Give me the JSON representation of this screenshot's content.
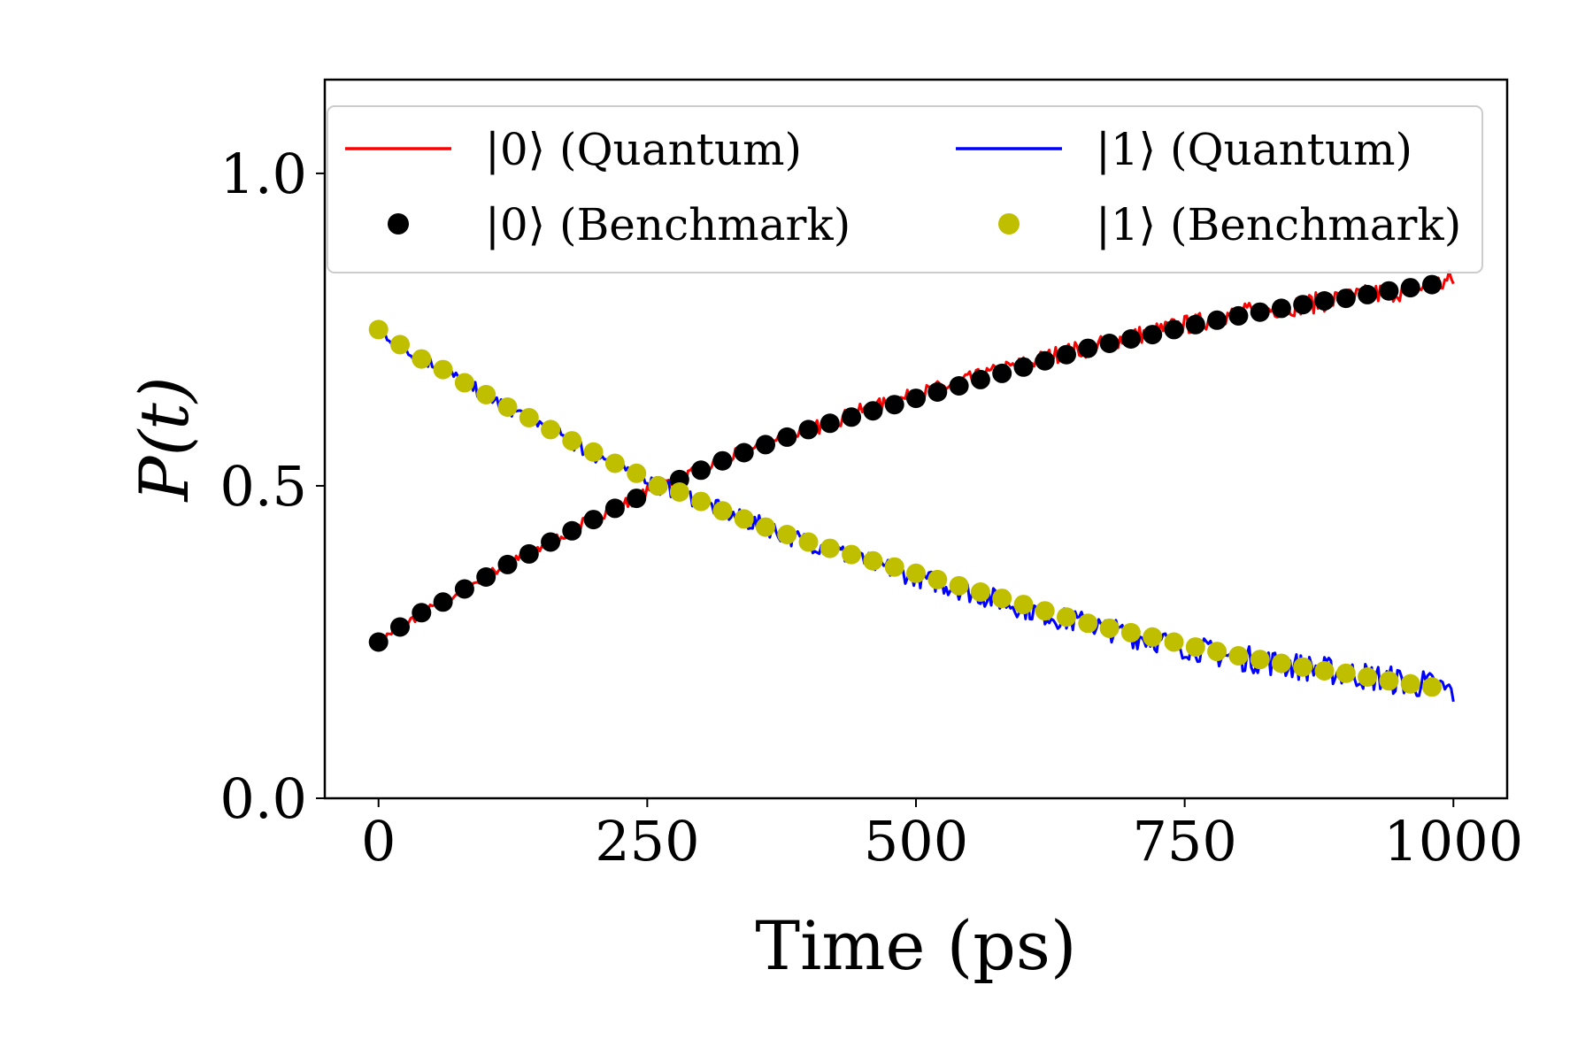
{
  "chart_data": {
    "type": "line",
    "title": "",
    "xlabel": "Time (ps)",
    "ylabel": "P(t)",
    "xlim": [
      -50,
      1050
    ],
    "ylim": [
      0.0,
      1.15
    ],
    "xticks": [
      0,
      250,
      500,
      750,
      1000
    ],
    "xtick_labels": [
      "0",
      "250",
      "500",
      "750",
      "1000"
    ],
    "yticks": [
      0.0,
      0.5,
      1.0
    ],
    "ytick_labels": [
      "0.0",
      "0.5",
      "1.0"
    ],
    "grid": false,
    "legend_position": "top",
    "legend": [
      {
        "label": "|0⟩ (Quantum)",
        "kind": "line",
        "color": "#ff0000"
      },
      {
        "label": "|1⟩ (Quantum)",
        "kind": "line",
        "color": "#0000ff"
      },
      {
        "label": "|0⟩ (Benchmark)",
        "kind": "marker",
        "color": "#000000"
      },
      {
        "label": "|1⟩ (Benchmark)",
        "kind": "marker",
        "color": "#bfbf00"
      }
    ],
    "series": [
      {
        "name": "|0⟩ (Quantum)",
        "style": "line",
        "color": "#ff0000",
        "x": [
          0,
          20,
          40,
          60,
          80,
          100,
          120,
          140,
          160,
          180,
          200,
          220,
          240,
          260,
          280,
          300,
          320,
          340,
          360,
          380,
          400,
          420,
          440,
          460,
          480,
          500,
          520,
          540,
          560,
          580,
          600,
          620,
          640,
          660,
          680,
          700,
          720,
          740,
          760,
          780,
          800,
          820,
          840,
          860,
          880,
          900,
          920,
          940,
          960,
          980,
          1000
        ],
        "values": [
          0.25,
          0.275,
          0.295,
          0.315,
          0.335,
          0.355,
          0.375,
          0.39,
          0.41,
          0.43,
          0.45,
          0.465,
          0.48,
          0.5,
          0.51,
          0.525,
          0.54,
          0.555,
          0.565,
          0.58,
          0.59,
          0.6,
          0.615,
          0.625,
          0.635,
          0.645,
          0.655,
          0.665,
          0.675,
          0.685,
          0.695,
          0.705,
          0.715,
          0.72,
          0.73,
          0.74,
          0.745,
          0.755,
          0.76,
          0.77,
          0.775,
          0.78,
          0.785,
          0.79,
          0.795,
          0.8,
          0.805,
          0.81,
          0.815,
          0.82,
          0.83
        ]
      },
      {
        "name": "|1⟩ (Quantum)",
        "style": "line",
        "color": "#0000ff",
        "x": [
          0,
          20,
          40,
          60,
          80,
          100,
          120,
          140,
          160,
          180,
          200,
          220,
          240,
          260,
          280,
          300,
          320,
          340,
          360,
          380,
          400,
          420,
          440,
          460,
          480,
          500,
          520,
          540,
          560,
          580,
          600,
          620,
          640,
          660,
          680,
          700,
          720,
          740,
          760,
          780,
          800,
          820,
          840,
          860,
          880,
          900,
          920,
          940,
          960,
          980,
          1000
        ],
        "values": [
          0.75,
          0.725,
          0.705,
          0.685,
          0.665,
          0.645,
          0.625,
          0.61,
          0.59,
          0.57,
          0.55,
          0.535,
          0.52,
          0.5,
          0.49,
          0.475,
          0.46,
          0.445,
          0.435,
          0.42,
          0.41,
          0.4,
          0.385,
          0.375,
          0.365,
          0.355,
          0.345,
          0.335,
          0.325,
          0.315,
          0.305,
          0.295,
          0.285,
          0.28,
          0.27,
          0.26,
          0.255,
          0.245,
          0.24,
          0.23,
          0.225,
          0.22,
          0.215,
          0.21,
          0.205,
          0.2,
          0.195,
          0.19,
          0.185,
          0.18,
          0.17
        ]
      },
      {
        "name": "|0⟩ (Benchmark)",
        "style": "marker",
        "color": "#000000",
        "x": [
          0,
          20,
          40,
          60,
          80,
          100,
          120,
          140,
          160,
          180,
          200,
          220,
          240,
          260,
          280,
          300,
          320,
          340,
          360,
          380,
          400,
          420,
          440,
          460,
          480,
          500,
          520,
          540,
          560,
          580,
          600,
          620,
          640,
          660,
          680,
          700,
          720,
          740,
          760,
          780,
          800,
          820,
          840,
          860,
          880,
          900,
          920,
          940,
          960,
          980
        ],
        "values": [
          0.25,
          0.274,
          0.297,
          0.314,
          0.335,
          0.354,
          0.374,
          0.391,
          0.41,
          0.428,
          0.446,
          0.464,
          0.48,
          0.5,
          0.51,
          0.525,
          0.54,
          0.553,
          0.566,
          0.578,
          0.59,
          0.6,
          0.61,
          0.62,
          0.63,
          0.64,
          0.65,
          0.66,
          0.67,
          0.68,
          0.69,
          0.7,
          0.71,
          0.72,
          0.728,
          0.735,
          0.742,
          0.75,
          0.758,
          0.765,
          0.772,
          0.778,
          0.784,
          0.79,
          0.796,
          0.8,
          0.806,
          0.812,
          0.817,
          0.822
        ]
      },
      {
        "name": "|1⟩ (Benchmark)",
        "style": "marker",
        "color": "#bfbf00",
        "x": [
          0,
          20,
          40,
          60,
          80,
          100,
          120,
          140,
          160,
          180,
          200,
          220,
          240,
          260,
          280,
          300,
          320,
          340,
          360,
          380,
          400,
          420,
          440,
          460,
          480,
          500,
          520,
          540,
          560,
          580,
          600,
          620,
          640,
          660,
          680,
          700,
          720,
          740,
          760,
          780,
          800,
          820,
          840,
          860,
          880,
          900,
          920,
          940,
          960,
          980
        ],
        "values": [
          0.75,
          0.726,
          0.703,
          0.686,
          0.665,
          0.646,
          0.626,
          0.609,
          0.59,
          0.572,
          0.554,
          0.536,
          0.52,
          0.5,
          0.49,
          0.475,
          0.46,
          0.447,
          0.434,
          0.422,
          0.41,
          0.4,
          0.39,
          0.38,
          0.37,
          0.36,
          0.35,
          0.34,
          0.33,
          0.32,
          0.31,
          0.3,
          0.29,
          0.28,
          0.272,
          0.265,
          0.258,
          0.25,
          0.242,
          0.235,
          0.228,
          0.222,
          0.216,
          0.21,
          0.204,
          0.2,
          0.194,
          0.188,
          0.183,
          0.178
        ]
      }
    ]
  }
}
